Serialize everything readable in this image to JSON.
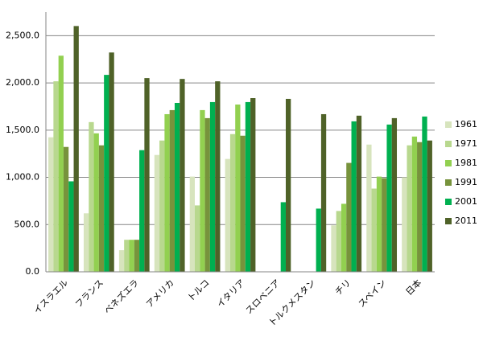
{
  "chart_data": {
    "type": "bar",
    "categories": [
      "イスラエル",
      "フランス",
      "ベネズエラ",
      "アメリカ",
      "トルコ",
      "イタリア",
      "スロベニア",
      "トルクメスタン",
      "チリ",
      "スペイン",
      "日本"
    ],
    "series": [
      {
        "name": "1961",
        "color": "#d7e4bd",
        "values": [
          1424,
          619,
          229,
          1237,
          1008,
          1195,
          null,
          null,
          492,
          1347,
          1000
        ]
      },
      {
        "name": "1971",
        "color": "#b8d88e",
        "values": [
          2017,
          1585,
          339,
          1390,
          703,
          1458,
          null,
          null,
          644,
          881,
          1339
        ]
      },
      {
        "name": "1981",
        "color": "#92d050",
        "values": [
          2288,
          1466,
          339,
          1669,
          1712,
          1771,
          null,
          null,
          720,
          1008,
          1432
        ]
      },
      {
        "name": "1991",
        "color": "#77933c",
        "values": [
          1322,
          1339,
          339,
          1712,
          1627,
          1441,
          null,
          null,
          1153,
          992,
          1373
        ]
      },
      {
        "name": "2001",
        "color": "#00b050",
        "values": [
          958,
          2085,
          1288,
          1788,
          1797,
          1797,
          737,
          669,
          1593,
          1559,
          1644
        ]
      },
      {
        "name": "2011",
        "color": "#4f6228",
        "values": [
          2602,
          2322,
          2051,
          2042,
          2017,
          1839,
          1831,
          1669,
          1653,
          1627,
          1390
        ]
      }
    ],
    "ylim": [
      0,
      2750
    ],
    "yticks": [
      {
        "value": 0,
        "label": "0.0"
      },
      {
        "value": 500,
        "label": "500.0"
      },
      {
        "value": 1000,
        "label": "1,000.0"
      },
      {
        "value": 1500,
        "label": "1,500.0"
      },
      {
        "value": 2000,
        "label": "2,000.0"
      },
      {
        "value": 2500,
        "label": "2,500.0"
      }
    ],
    "grid": true,
    "legend": "right"
  }
}
